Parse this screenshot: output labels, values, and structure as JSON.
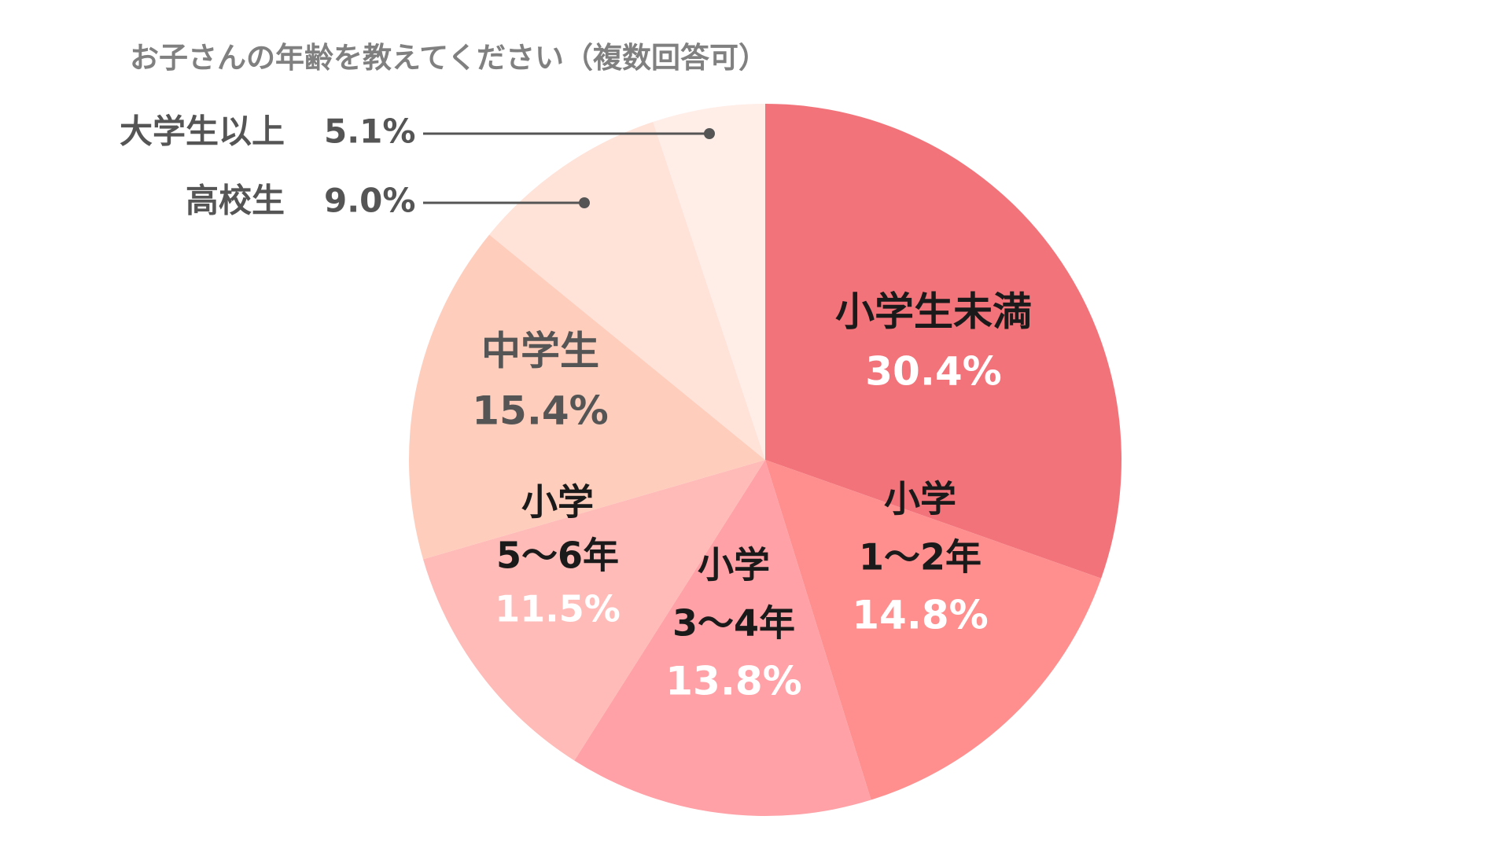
{
  "chart_data": {
    "type": "pie",
    "title": "お子さんの年齢を教えてください（複数回答可）",
    "start": "top",
    "direction": "clockwise",
    "slices": [
      {
        "name_lines": [
          "小学生未満"
        ],
        "value": 30.4,
        "value_label": "30.4%",
        "color": "#f2737a",
        "name_color": "#1a1a1a",
        "value_color": "#ffffff",
        "label_position": "inside"
      },
      {
        "name_lines": [
          "小学",
          "1〜2年"
        ],
        "value": 14.8,
        "value_label": "14.8%",
        "color": "#ff8f8f",
        "name_color": "#1a1a1a",
        "value_color": "#ffffff",
        "label_position": "inside"
      },
      {
        "name_lines": [
          "小学",
          "3〜4年"
        ],
        "value": 13.8,
        "value_label": "13.8%",
        "color": "#ffa1a6",
        "name_color": "#1a1a1a",
        "value_color": "#ffffff",
        "label_position": "inside"
      },
      {
        "name_lines": [
          "小学",
          "5〜6年"
        ],
        "value": 11.5,
        "value_label": "11.5%",
        "color": "#ffbbb8",
        "name_color": "#1a1a1a",
        "value_color": "#ffffff",
        "label_position": "inside"
      },
      {
        "name_lines": [
          "中学生"
        ],
        "value": 15.4,
        "value_label": "15.4%",
        "color": "#ffcdbc",
        "name_color": "#555555",
        "value_color": "#555555",
        "label_position": "inside"
      },
      {
        "name_lines": [
          "高校生"
        ],
        "value": 9.0,
        "value_label": "9.0%",
        "color": "#ffe2d8",
        "name_color": "#555555",
        "value_color": "#555555",
        "label_position": "outside"
      },
      {
        "name_lines": [
          "大学生以上"
        ],
        "value": 5.1,
        "value_label": "5.1%",
        "color": "#ffede8",
        "name_color": "#555555",
        "value_color": "#555555",
        "label_position": "outside"
      }
    ],
    "leader_line_color": "#555555"
  }
}
